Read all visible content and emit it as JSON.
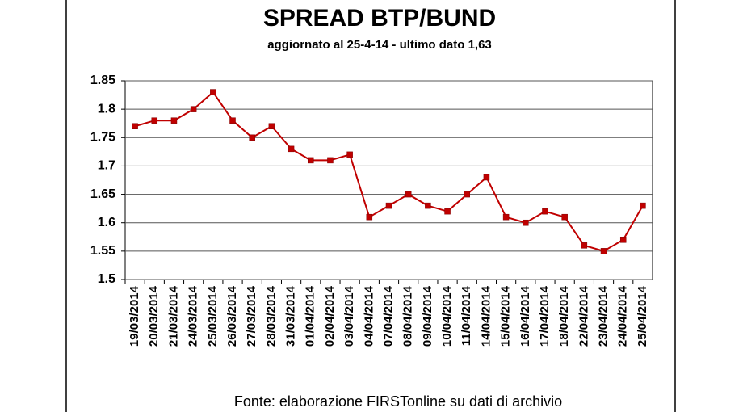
{
  "chart_data": {
    "type": "line",
    "title": "SPREAD BTP/BUND",
    "subtitle": "aggiornato al 25-4-14 - ultimo dato 1,63",
    "source": "Fonte: elaborazione FIRSTonline su dati di archivio",
    "categories": [
      "19/03/2014",
      "20/03/2014",
      "21/03/2014",
      "24/03/2014",
      "25/03/2014",
      "26/03/2014",
      "27/03/2014",
      "28/03/2014",
      "31/03/2014",
      "01/04/2014",
      "02/04/2014",
      "03/04/2014",
      "04/04/2014",
      "07/04/2014",
      "08/04/2014",
      "09/04/2014",
      "10/04/2014",
      "11/04/2014",
      "14/04/2014",
      "15/04/2014",
      "16/04/2014",
      "17/04/2014",
      "18/04/2014",
      "22/04/2014",
      "23/04/2014",
      "24/04/2014",
      "25/04/2014"
    ],
    "values": [
      1.77,
      1.78,
      1.78,
      1.8,
      1.83,
      1.78,
      1.75,
      1.77,
      1.73,
      1.71,
      1.71,
      1.72,
      1.61,
      1.63,
      1.65,
      1.63,
      1.62,
      1.65,
      1.68,
      1.61,
      1.6,
      1.62,
      1.61,
      1.56,
      1.55,
      1.57,
      1.63
    ],
    "color": "#c00000",
    "ylim": [
      1.5,
      1.85
    ],
    "yticks": [
      1.5,
      1.55,
      1.6,
      1.65,
      1.7,
      1.75,
      1.8,
      1.85
    ],
    "grid": true
  }
}
